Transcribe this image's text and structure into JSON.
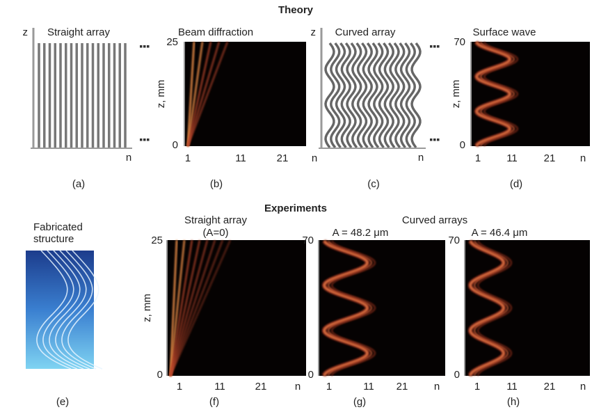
{
  "header": {
    "theory": "Theory",
    "experiments": "Experiments",
    "curved_arrays": "Curved arrays"
  },
  "panels": [
    {
      "title": "Straight array",
      "axis_y": "z",
      "axis_x": "n",
      "caption": "(a)"
    },
    {
      "title": "Beam diffraction",
      "y_label": "z, mm",
      "y_ticks": [
        "25",
        "0"
      ],
      "x_ticks": [
        "1",
        "11",
        "21",
        "n"
      ],
      "caption": "(b)"
    },
    {
      "title": "Curved array",
      "axis_y": "z",
      "axis_x": "n",
      "caption": "(c)"
    },
    {
      "title": "Surface wave",
      "y_label": "z, mm",
      "y_ticks": [
        "70",
        "0"
      ],
      "x_ticks": [
        "1",
        "11",
        "21",
        "n"
      ],
      "caption": "(d)"
    },
    {
      "title": [
        "Fabricated",
        "structure"
      ],
      "caption": "(e)"
    },
    {
      "title": [
        "Straight array",
        "(A=0)"
      ],
      "y_label": "z, mm",
      "y_ticks": [
        "25",
        "0"
      ],
      "x_ticks": [
        "1",
        "11",
        "21",
        "n"
      ],
      "caption": "(f)"
    },
    {
      "title": "A = 48.2 μm",
      "y_ticks": [
        "70",
        "0"
      ],
      "x_ticks": [
        "1",
        "11",
        "21",
        "n"
      ],
      "caption": "(g)"
    },
    {
      "title": "A = 46.4 μm",
      "y_ticks": [
        "70",
        "0"
      ],
      "x_ticks": [
        "1",
        "11",
        "21",
        "n"
      ],
      "caption": "(h)"
    }
  ]
}
